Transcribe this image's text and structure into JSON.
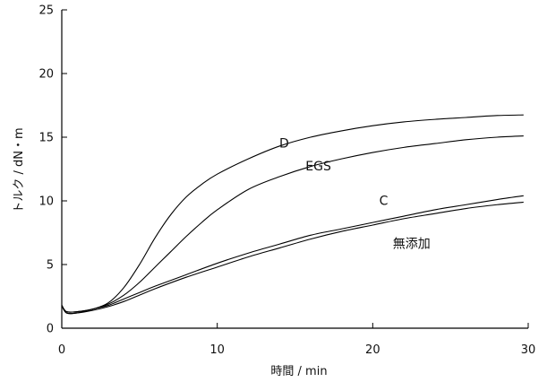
{
  "chart_data": {
    "type": "line",
    "xlabel": "時間 / min",
    "ylabel": "トルク / dN・m",
    "xlim": [
      0,
      30
    ],
    "ylim": [
      0,
      25
    ],
    "xticks": [
      0,
      10,
      20,
      30
    ],
    "yticks": [
      0,
      5,
      10,
      15,
      20,
      25
    ],
    "grid": false,
    "legend": "none",
    "series": [
      {
        "name": "D",
        "x": [
          0,
          0.3,
          1,
          2,
          3,
          4,
          5,
          6,
          7,
          8,
          9,
          10,
          12,
          14,
          16,
          18,
          20,
          22,
          24,
          26,
          28,
          29.7
        ],
        "y": [
          1.8,
          1.3,
          1.3,
          1.5,
          2.0,
          3.2,
          5.0,
          7.1,
          8.9,
          10.3,
          11.3,
          12.1,
          13.3,
          14.3,
          15.0,
          15.5,
          15.9,
          16.2,
          16.4,
          16.55,
          16.7,
          16.75
        ],
        "line_color": "#000000"
      },
      {
        "name": "EGS",
        "x": [
          0,
          0.3,
          1,
          2,
          3,
          4,
          5,
          6,
          7,
          8,
          9,
          10,
          12,
          14,
          16,
          18,
          20,
          22,
          24,
          26,
          28,
          29.7
        ],
        "y": [
          1.8,
          1.3,
          1.3,
          1.5,
          1.9,
          2.6,
          3.6,
          4.8,
          6.0,
          7.2,
          8.3,
          9.3,
          10.9,
          11.9,
          12.7,
          13.3,
          13.8,
          14.2,
          14.5,
          14.8,
          15.0,
          15.1
        ],
        "line_color": "#000000"
      },
      {
        "name": "C",
        "x": [
          0,
          0.3,
          1,
          2,
          3,
          4,
          5,
          6,
          8,
          10,
          12,
          14,
          16,
          18,
          20,
          22,
          24,
          26,
          28,
          29.7
        ],
        "y": [
          1.8,
          1.2,
          1.2,
          1.5,
          1.8,
          2.3,
          2.8,
          3.3,
          4.2,
          5.1,
          5.9,
          6.6,
          7.3,
          7.8,
          8.3,
          8.8,
          9.3,
          9.7,
          10.1,
          10.4
        ],
        "line_color": "#000000"
      },
      {
        "name": "無添加",
        "x": [
          0,
          0.3,
          1,
          2,
          3,
          4,
          5,
          6,
          8,
          10,
          12,
          14,
          16,
          18,
          20,
          22,
          24,
          26,
          28,
          29.7
        ],
        "y": [
          1.8,
          1.2,
          1.2,
          1.4,
          1.7,
          2.1,
          2.6,
          3.1,
          4.0,
          4.8,
          5.6,
          6.3,
          7.0,
          7.6,
          8.1,
          8.6,
          9.0,
          9.4,
          9.7,
          9.9
        ],
        "line_color": "#000000"
      }
    ],
    "annotations": [
      {
        "text": "D",
        "x": 14.3,
        "y": 14.2
      },
      {
        "text": "EGS",
        "x": 16.5,
        "y": 12.4
      },
      {
        "text": "C",
        "x": 20.7,
        "y": 9.7
      },
      {
        "text": "無添加",
        "x": 22.5,
        "y": 6.3
      }
    ]
  }
}
